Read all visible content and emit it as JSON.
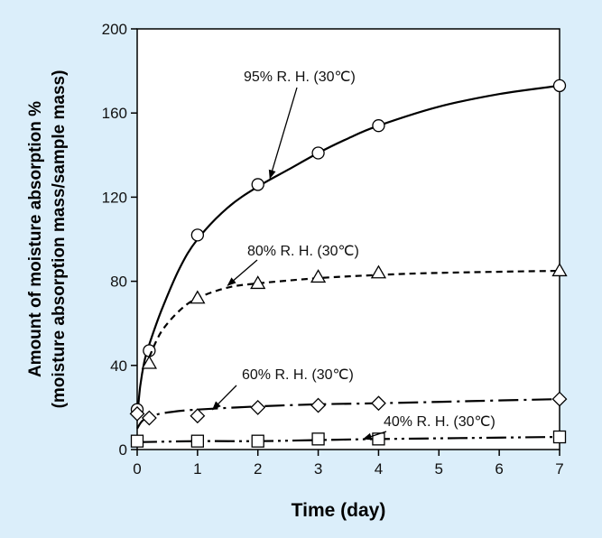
{
  "page": {
    "background": "#dbeefa",
    "plot_background": "#ffffff"
  },
  "chart_data": {
    "type": "line",
    "title": "",
    "xlabel": "Time  (day)",
    "ylabel_line1": "Amount of moisture absorption %",
    "ylabel_line2": "(moisture absorption mass/sample mass)",
    "xlim": [
      0,
      7
    ],
    "ylim": [
      0,
      200
    ],
    "xticks": [
      "0",
      "1",
      "2",
      "3",
      "4",
      "5",
      "6",
      "7"
    ],
    "yticks": [
      "0",
      "40",
      "80",
      "120",
      "160",
      "200"
    ],
    "grid": false,
    "legend": "none (series labelled by annotations with arrows)",
    "series": [
      {
        "name": "95% R. H. (30℃)",
        "marker": "circle",
        "line_style": "solid",
        "points": [
          [
            0,
            19
          ],
          [
            0.2,
            47
          ],
          [
            1,
            102
          ],
          [
            2,
            126
          ],
          [
            3,
            141
          ],
          [
            4,
            154
          ],
          [
            7,
            173
          ]
        ],
        "curve": [
          [
            0,
            15
          ],
          [
            0.05,
            30
          ],
          [
            0.12,
            42
          ],
          [
            0.2,
            50
          ],
          [
            0.4,
            66
          ],
          [
            0.7,
            86
          ],
          [
            1,
            100
          ],
          [
            1.5,
            115
          ],
          [
            2,
            125
          ],
          [
            2.5,
            133
          ],
          [
            3,
            141
          ],
          [
            3.5,
            148
          ],
          [
            4,
            154
          ],
          [
            5,
            163
          ],
          [
            6,
            169
          ],
          [
            7,
            173
          ]
        ]
      },
      {
        "name": "80% R. H. (30℃)",
        "marker": "triangle",
        "line_style": "dashed",
        "points": [
          [
            0.2,
            41
          ],
          [
            1,
            72
          ],
          [
            2,
            79
          ],
          [
            3,
            82
          ],
          [
            4,
            84
          ],
          [
            7,
            85
          ]
        ],
        "curve": [
          [
            0.2,
            44
          ],
          [
            0.4,
            56
          ],
          [
            0.7,
            66
          ],
          [
            1,
            72
          ],
          [
            1.5,
            77
          ],
          [
            2,
            79
          ],
          [
            3,
            81.5
          ],
          [
            4,
            83
          ],
          [
            5,
            84
          ],
          [
            7,
            85
          ]
        ]
      },
      {
        "name": "60% R. H. (30℃)",
        "marker": "diamond",
        "line_style": "dash-dot",
        "points": [
          [
            0,
            17
          ],
          [
            0.2,
            15
          ],
          [
            1,
            16
          ],
          [
            2,
            20
          ],
          [
            3,
            21
          ],
          [
            4,
            22
          ],
          [
            7,
            24
          ]
        ],
        "curve": [
          [
            0,
            10
          ],
          [
            0.1,
            14
          ],
          [
            0.3,
            16.5
          ],
          [
            0.6,
            18
          ],
          [
            1,
            19
          ],
          [
            2,
            20.5
          ],
          [
            3,
            21.5
          ],
          [
            4,
            22
          ],
          [
            5.5,
            23
          ],
          [
            7,
            24
          ]
        ]
      },
      {
        "name": "40% R. H. (30℃)",
        "marker": "square",
        "line_style": "dash-dot-dot",
        "points": [
          [
            0,
            4
          ],
          [
            1,
            4
          ],
          [
            2,
            4
          ],
          [
            3,
            5
          ],
          [
            4,
            5
          ],
          [
            7,
            6
          ]
        ],
        "curve": [
          [
            0,
            3.5
          ],
          [
            1,
            4
          ],
          [
            2,
            4
          ],
          [
            3,
            4.5
          ],
          [
            4,
            5
          ],
          [
            5.5,
            5.5
          ],
          [
            7,
            6
          ]
        ]
      }
    ],
    "annotations": [
      {
        "text": "95% R. H.  (30℃)",
        "series": 0,
        "arrow_to": [
          2.2,
          129
        ]
      },
      {
        "text": "80% R. H.  (30℃)",
        "series": 1,
        "arrow_to": [
          1.5,
          78
        ]
      },
      {
        "text": "60% R. H.  (30℃)",
        "series": 2,
        "arrow_to": [
          1.25,
          19
        ]
      },
      {
        "text": "40% R. H.  (30℃)",
        "series": 3,
        "arrow_to": [
          3.75,
          5
        ]
      }
    ]
  }
}
